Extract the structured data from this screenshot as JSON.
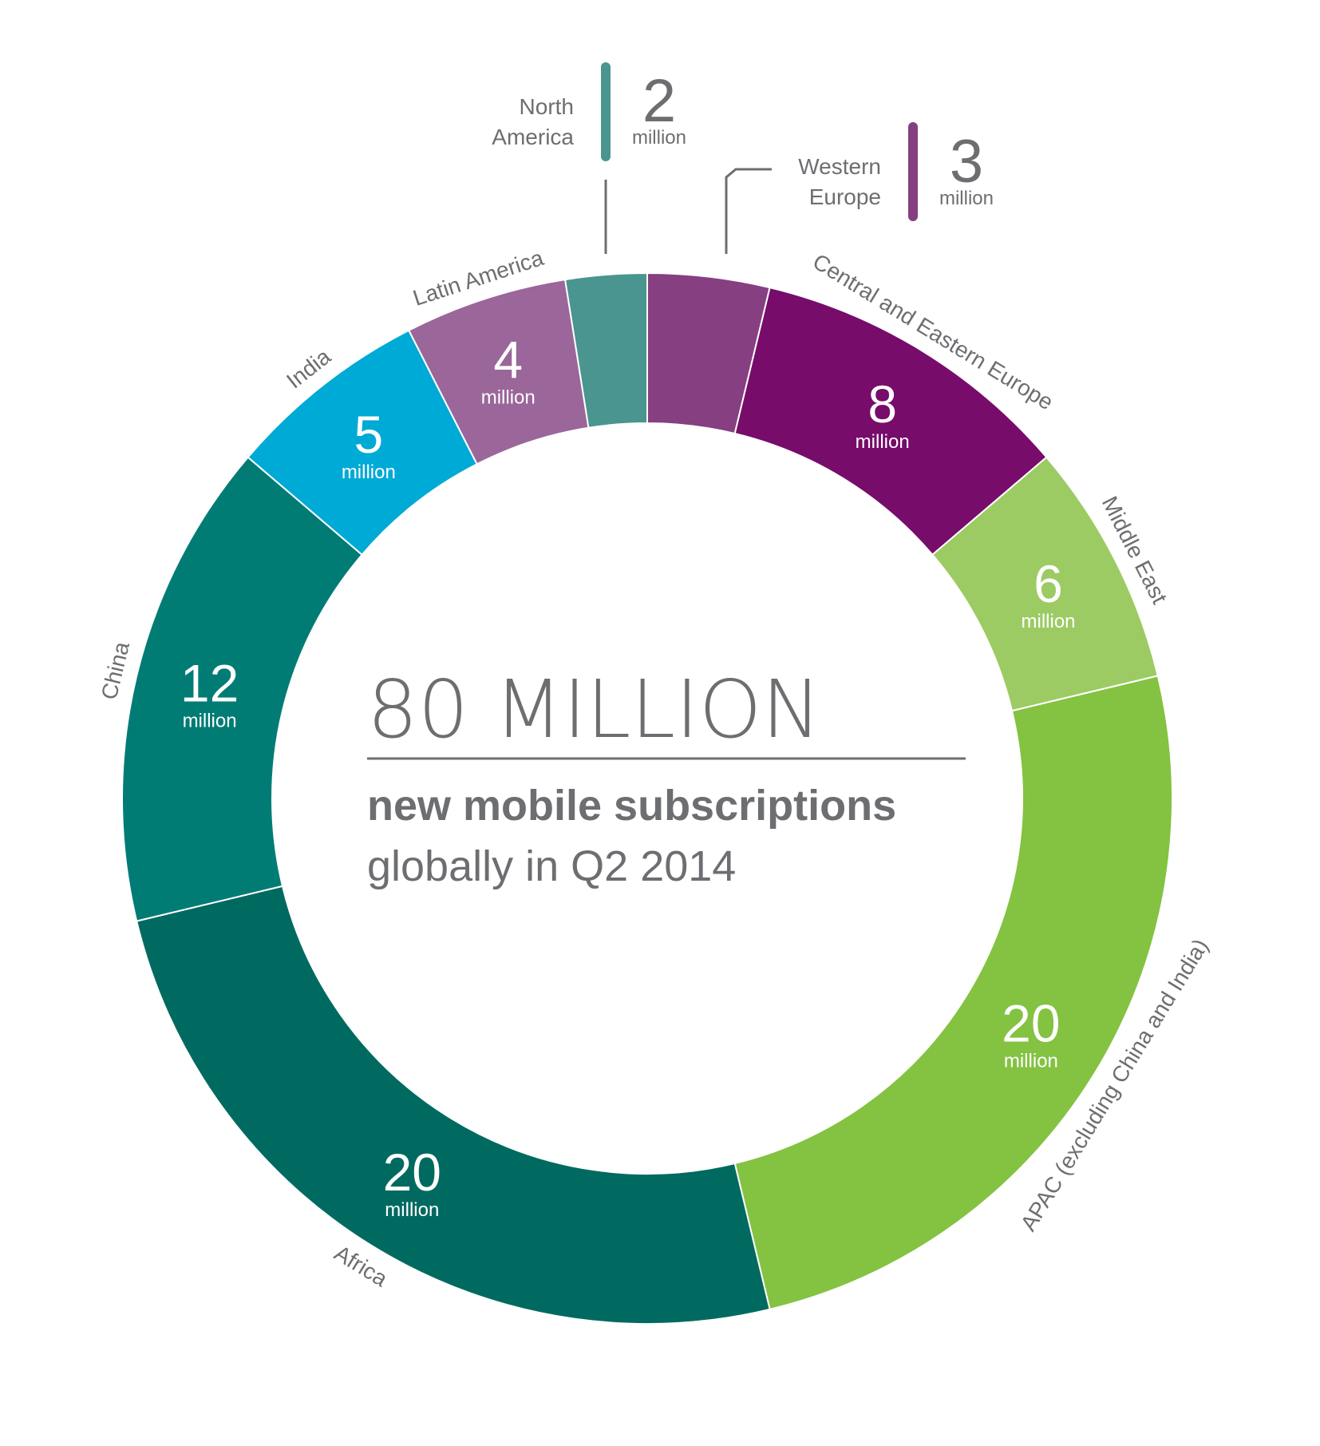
{
  "chart_data": {
    "type": "pie",
    "center": {
      "title": "80 MILLION",
      "line1": "new mobile subscriptions",
      "line2": "globally in Q2 2014"
    },
    "unit_label": "million",
    "segments": [
      {
        "label": "Western Europe",
        "value": 3,
        "value_text": "3",
        "color": "#863f81",
        "callout": true
      },
      {
        "label": "Central and Eastern Europe",
        "value": 8,
        "value_text": "8",
        "color": "#770c6b"
      },
      {
        "label": "Middle East",
        "value": 6,
        "value_text": "6",
        "color": "#9ccb64"
      },
      {
        "label": "APAC (excluding China and India)",
        "value": 20,
        "value_text": "20",
        "color": "#84c242"
      },
      {
        "label": "Africa",
        "value": 20,
        "value_text": "20",
        "color": "#006a61"
      },
      {
        "label": "China",
        "value": 12,
        "value_text": "12",
        "color": "#007c75"
      },
      {
        "label": "India",
        "value": 5,
        "value_text": "5",
        "color": "#00aad6"
      },
      {
        "label": "Latin America",
        "value": 4,
        "value_text": "4",
        "color": "#9b6699"
      },
      {
        "label": "North America",
        "value": 2,
        "value_text": "2",
        "color": "#4a9590",
        "callout": true
      }
    ],
    "callouts": [
      {
        "key": "north-america",
        "label_lines": [
          "North",
          "America"
        ],
        "value_text": "2",
        "bar_color": "#4a9590"
      },
      {
        "key": "western-europe",
        "label_lines": [
          "Western",
          "Europe"
        ],
        "value_text": "3",
        "bar_color": "#863f81"
      }
    ]
  }
}
